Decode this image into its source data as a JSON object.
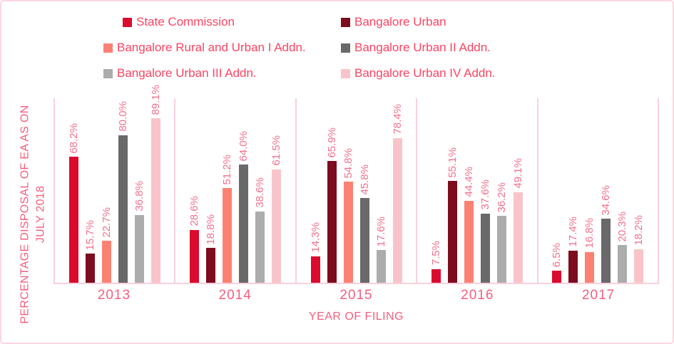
{
  "ui_colors": {
    "frame_border": "#FBD7E0",
    "axis_line": "#F9D0DB",
    "legend_text": "#FA4463",
    "data_label_text": "#F2708C",
    "axis_text": "#F45F7D"
  },
  "chart_data": {
    "type": "bar",
    "title": "",
    "xlabel": "YEAR OF FILING",
    "ylabel": "PERCENTAGE DISPOSAL OF EA AS ON JULY 2018",
    "ylabel_lines": [
      "PERCENTAGE DISPOSAL OF EA AS ON",
      "JULY 2018"
    ],
    "categories": [
      "2013",
      "2014",
      "2015",
      "2016",
      "2017"
    ],
    "ylim": [
      0,
      100
    ],
    "grid": false,
    "legend_position": "top",
    "series": [
      {
        "name": "State Commission",
        "color": "#DA0B2E",
        "values": [
          68.2,
          28.6,
          14.3,
          7.5,
          6.5
        ],
        "value_labels": [
          "68.2%",
          "28.6%",
          "14.3%",
          "7.5%",
          "6.5%"
        ]
      },
      {
        "name": "Bangalore Urban",
        "color": "#7C0C1E",
        "values": [
          15.7,
          18.8,
          65.9,
          55.1,
          17.4
        ],
        "value_labels": [
          "15.7%",
          "18.8%",
          "65.9%",
          "55.1%",
          "17.4%"
        ]
      },
      {
        "name": "Bangalore Rural and Urban I Addn.",
        "color": "#FB8273",
        "values": [
          22.7,
          51.2,
          54.8,
          44.4,
          16.8
        ],
        "value_labels": [
          "22.7%",
          "51.2%",
          "54.8%",
          "44.4%",
          "16.8%"
        ]
      },
      {
        "name": "Bangalore Urban II Addn.",
        "color": "#696969",
        "values": [
          80.0,
          64.0,
          45.8,
          37.6,
          34.6
        ],
        "value_labels": [
          "80.0%",
          "64.0%",
          "45.8%",
          "37.6%",
          "34.6%"
        ]
      },
      {
        "name": "Bangalore Urban III Addn.",
        "color": "#ACACAC",
        "values": [
          36.8,
          38.6,
          17.6,
          36.2,
          20.3
        ],
        "value_labels": [
          "36.8%",
          "38.6%",
          "17.6%",
          "36.2%",
          "20.3%"
        ]
      },
      {
        "name": "Bangalore Urban IV Addn.",
        "color": "#F9C4C9",
        "values": [
          89.1,
          61.5,
          78.4,
          49.1,
          18.2
        ],
        "value_labels": [
          "89.1%",
          "61.5%",
          "78.4%",
          "49.1%",
          "18.2%"
        ]
      }
    ]
  }
}
